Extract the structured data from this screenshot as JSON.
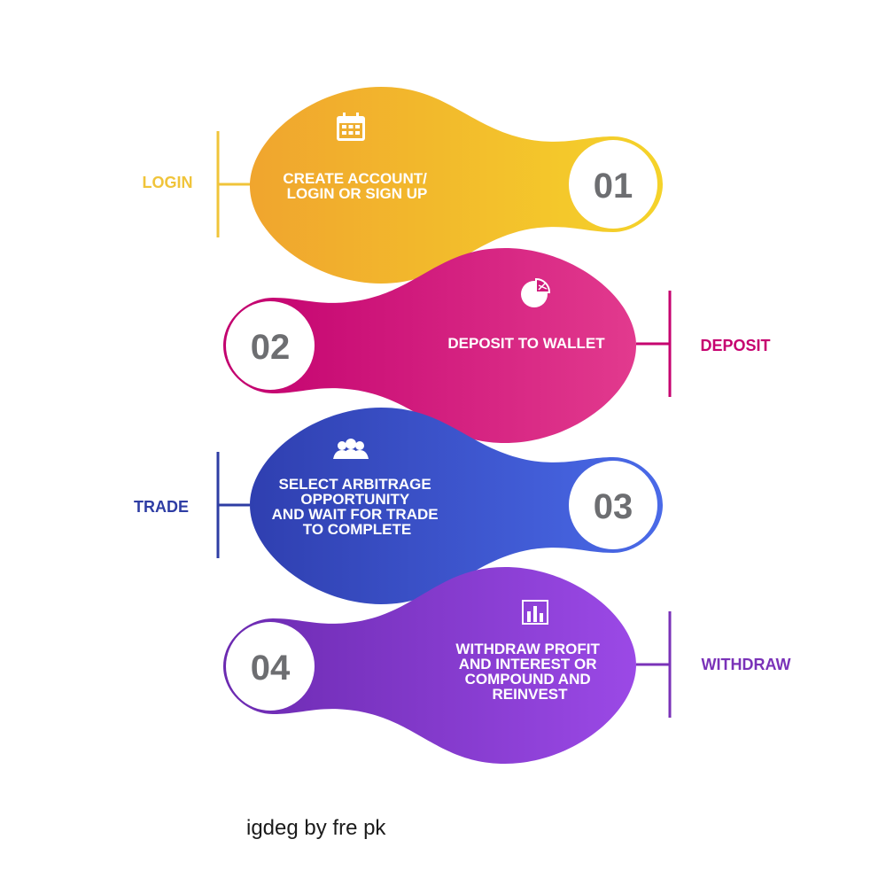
{
  "steps": [
    {
      "number": "01",
      "lines": [
        "CREATE ACCOUNT/",
        "LOGIN OR SIGN UP"
      ],
      "side_label": "LOGIN",
      "icon": "calendar-icon",
      "colors": {
        "start": "#f0a52e",
        "end": "#f5d32a",
        "accent": "#f0c43a"
      }
    },
    {
      "number": "02",
      "lines": [
        "DEPOSIT TO WALLET"
      ],
      "side_label": "DEPOSIT",
      "icon": "pie-chart-icon",
      "colors": {
        "start": "#e23a8e",
        "end": "#c2006e",
        "accent": "#c6006f"
      }
    },
    {
      "number": "03",
      "lines": [
        "SELECT ARBITRAGE",
        "OPPORTUNITY",
        "AND WAIT FOR TRADE",
        "TO COMPLETE"
      ],
      "side_label": "TRADE",
      "icon": "team-icon",
      "colors": {
        "start": "#2f3fb0",
        "end": "#4a6ae8",
        "accent": "#2e3da4"
      }
    },
    {
      "number": "04",
      "lines": [
        "WITHDRAW PROFIT",
        "AND INTEREST OR",
        "COMPOUND AND",
        "REINVEST"
      ],
      "side_label": "WITHDRAW",
      "icon": "bar-chart-icon",
      "colors": {
        "start": "#9b49e6",
        "end": "#6b2ab0",
        "accent": "#7a32b8"
      }
    }
  ],
  "credit": "igdeg by fre pk"
}
